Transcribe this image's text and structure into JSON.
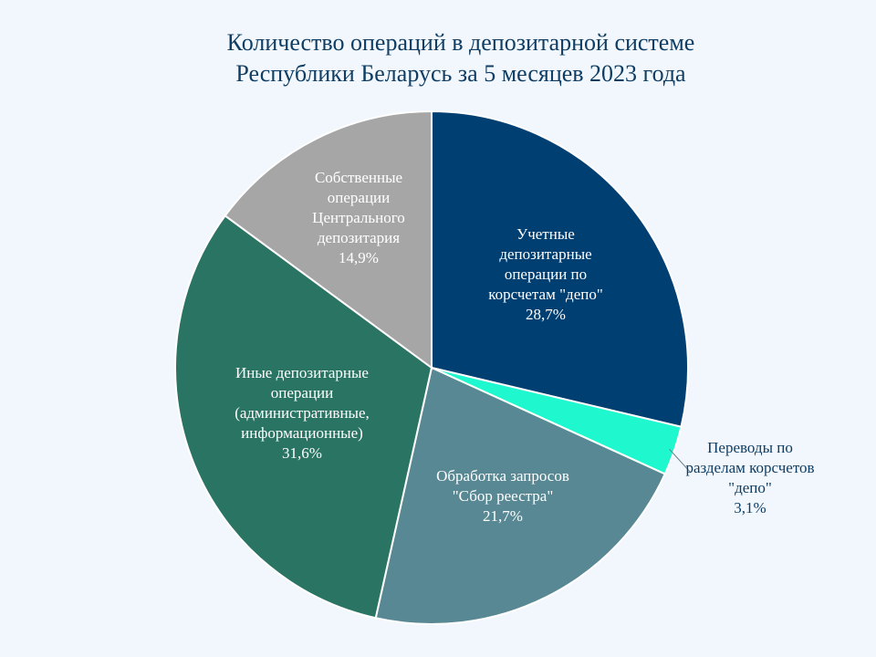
{
  "chart_data": {
    "type": "pie",
    "title_lines": [
      "Количество операций в  депозитарной системе",
      "Республики Беларусь за 5 месяцев 2023 года"
    ],
    "slices": [
      {
        "label_lines": [
          "Учетные",
          "депозитарные",
          "операции по",
          "корсчетам \"депо\""
        ],
        "value": 28.7,
        "value_label": "28,7%",
        "color": "#003f72",
        "text_color": "#ffffff"
      },
      {
        "label_lines": [
          "Переводы по",
          "разделам корсчетов",
          "\"депо\""
        ],
        "value": 3.1,
        "value_label": "3,1%",
        "color": "#1ff7cf",
        "text_color": "#0f3d63"
      },
      {
        "label_lines": [
          "Обработка запросов",
          "\"Сбор реестра\""
        ],
        "value": 21.7,
        "value_label": "21,7%",
        "color": "#588893",
        "text_color": "#ffffff"
      },
      {
        "label_lines": [
          "Иные депозитарные",
          "операции",
          "(административные,",
          "информационные)"
        ],
        "value": 31.6,
        "value_label": "31,6%",
        "color": "#2a7464",
        "text_color": "#ffffff"
      },
      {
        "label_lines": [
          "Собственные",
          "операции",
          "Центрального",
          "депозитария"
        ],
        "value": 14.9,
        "value_label": "14,9%",
        "color": "#a6a6a6",
        "text_color": "#ffffff"
      }
    ]
  }
}
